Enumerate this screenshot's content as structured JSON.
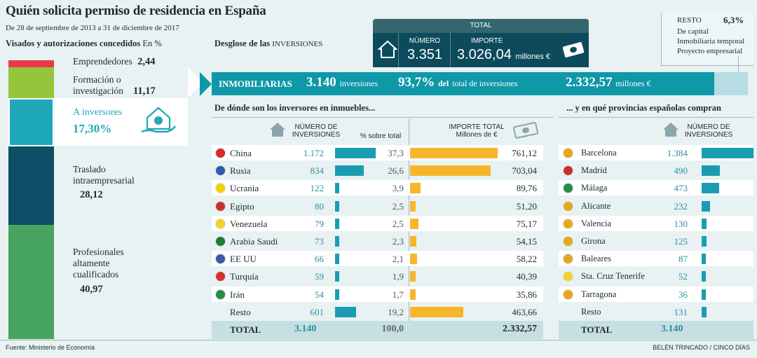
{
  "header": {
    "title": "Quién solicita permiso de residencia en España",
    "subtitle": "De 28 de septiembre de 2013 a 31 de diciembre de 2017"
  },
  "visas": {
    "title": "Visados y autorizaciones concedidos",
    "unit": "En %",
    "categories": [
      {
        "name": "Emprendedores",
        "value": 2.44,
        "value_label": "2,44",
        "color": "#e8394a"
      },
      {
        "name": "Formación o investigación",
        "line1": "Formación o",
        "line2": "investigación",
        "value": 11.17,
        "value_label": "11,17",
        "color": "#96c43a"
      },
      {
        "name": "A inversores",
        "value": 17.3,
        "value_label": "17,30%",
        "color": "#1fa8ba"
      },
      {
        "name": "Traslado intraempresarial",
        "line1": "Traslado",
        "line2": "intraempresarial",
        "value": 28.12,
        "value_label": "28,12",
        "color": "#0e4e67"
      },
      {
        "name": "Profesionales altamente cualificados",
        "line1": "Profesionales",
        "line2": "altamente",
        "line3": "cualificados",
        "value": 40.97,
        "value_label": "40,97",
        "color": "#47a560"
      }
    ]
  },
  "desglose": {
    "title_bold": "Desglose de las",
    "title_caps": "INVERSIONES"
  },
  "total": {
    "header": "TOTAL",
    "numero_label": "NÚMERO",
    "numero_value": "3.351",
    "importe_label": "IMPORTE",
    "importe_value": "3.026,04",
    "importe_unit": "millones €"
  },
  "resto": {
    "label": "RESTO",
    "pct": "6,3%",
    "items": [
      "De capital",
      "Inmobiliaria temporal",
      "Proyecto empresarial"
    ]
  },
  "inmobiliarias": {
    "label": "INMOBILIARIAS",
    "count": "3.140",
    "count_unit": "inversiones",
    "pct": "93,7%",
    "pct_unit_bold": "del",
    "pct_unit": "total de inversiones",
    "amount": "2.332,57",
    "amount_unit": "millones €",
    "share": 93.7
  },
  "origin": {
    "title": "De dónde son los inversores en inmuebles...",
    "col_numero": [
      "NÚMERO DE",
      "INVERSIONES"
    ],
    "col_pct": "% sobre total",
    "col_importe": [
      "IMPORTE TOTAL",
      "Millones de €"
    ],
    "total_label": "TOTAL",
    "total_numero": "3.140",
    "total_pct": "100,0",
    "total_importe": "2.332,57"
  },
  "provinces": {
    "title": "... y en qué provincias españolas compran",
    "col_numero": [
      "NÚMERO DE",
      "INVERSIONES"
    ],
    "total_label": "TOTAL",
    "total_numero": "3.140"
  },
  "chart_data": [
    {
      "type": "bar",
      "title": "De dónde son los inversores en inmuebles...",
      "categories": [
        "China",
        "Rusia",
        "Ucrania",
        "Egipto",
        "Venezuela",
        "Arabia Saudí",
        "EE UU",
        "Turquía",
        "Irán",
        "Resto"
      ],
      "series": [
        {
          "name": "Número de inversiones",
          "values": [
            1172,
            834,
            122,
            80,
            79,
            73,
            66,
            59,
            54,
            601
          ],
          "labels": [
            "1.172",
            "834",
            "122",
            "80",
            "79",
            "73",
            "66",
            "59",
            "54",
            "601"
          ]
        },
        {
          "name": "% sobre total",
          "values": [
            37.3,
            26.6,
            3.9,
            2.5,
            2.5,
            2.3,
            2.1,
            1.9,
            1.7,
            19.2
          ],
          "labels": [
            "37,3",
            "26,6",
            "3,9",
            "2,5",
            "2,5",
            "2,3",
            "2,1",
            "1,9",
            "1,7",
            "19,2"
          ]
        },
        {
          "name": "Importe total (Millones de €)",
          "values": [
            761.12,
            703.04,
            89.76,
            51.2,
            75.17,
            54.15,
            58.22,
            40.39,
            35.86,
            463.66
          ],
          "labels": [
            "761,12",
            "703,04",
            "89,76",
            "51,20",
            "75,17",
            "54,15",
            "58,22",
            "40,39",
            "35,86",
            "463,66"
          ]
        }
      ]
    },
    {
      "type": "bar",
      "title": "... y en qué provincias españolas compran",
      "categories": [
        "Barcelona",
        "Madrid",
        "Málaga",
        "Alicante",
        "Valencia",
        "Girona",
        "Baleares",
        "Sta. Cruz Tenerife",
        "Tarragona",
        "Resto"
      ],
      "series": [
        {
          "name": "Número de inversiones",
          "values": [
            1384,
            490,
            473,
            232,
            130,
            125,
            87,
            52,
            36,
            131
          ],
          "labels": [
            "1.384",
            "490",
            "473",
            "232",
            "130",
            "125",
            "87",
            "52",
            "36",
            "131"
          ]
        }
      ]
    }
  ],
  "flags": {
    "countries": [
      "#d62b2b",
      "#2a5cb0",
      "#f5d000",
      "#c8302e",
      "#f2d227",
      "#1f7a3a",
      "#3a5aa8",
      "#d83030",
      "#2a8a46",
      ""
    ],
    "provinces": [
      "#e6a71e",
      "#c8302e",
      "#2a8a46",
      "#e6a71e",
      "#e6a71e",
      "#e6a71e",
      "#e6a71e",
      "#f2d227",
      "#e6a71e",
      ""
    ]
  },
  "footer": {
    "source": "Fuente: Ministerio de Economía",
    "credit": "BELÉN TRINCADO / CINCO DÍAS"
  }
}
